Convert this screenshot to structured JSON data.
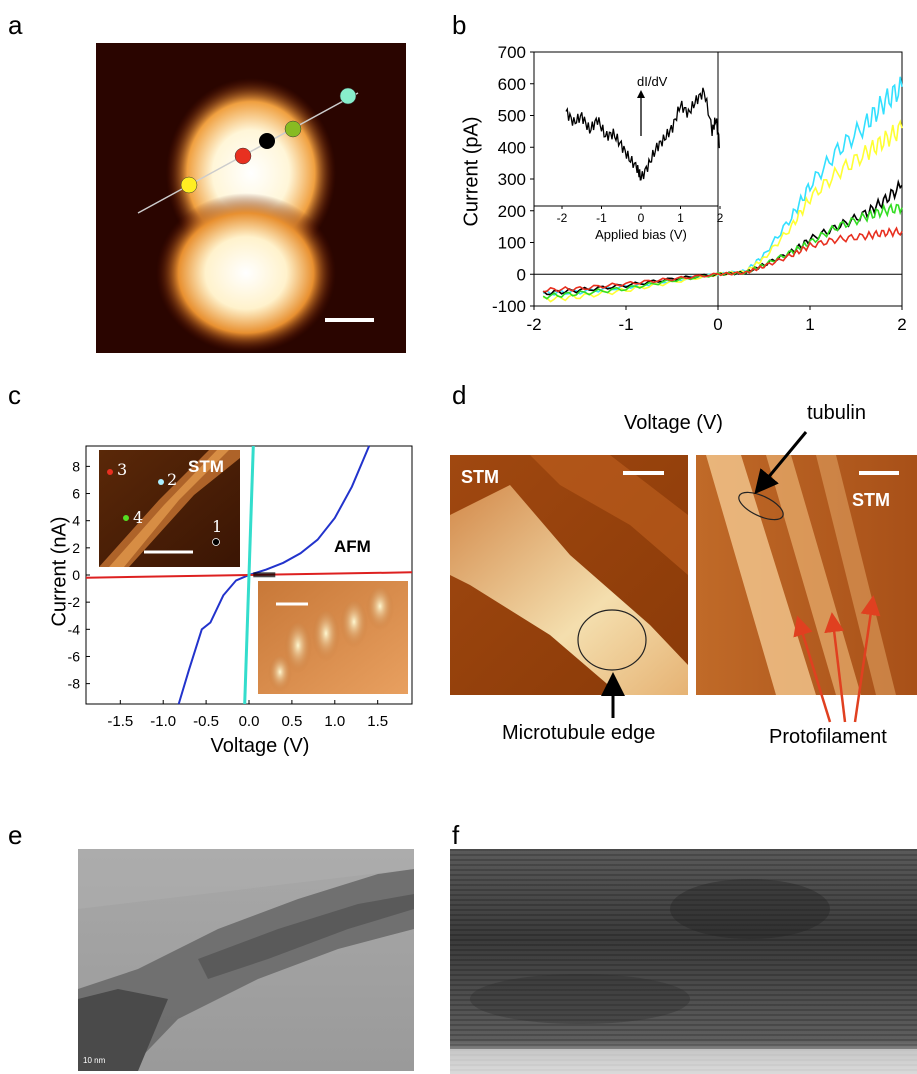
{
  "panels": {
    "a": {
      "letter": "a"
    },
    "b": {
      "letter": "b",
      "ylabel": "Current (pA)",
      "inset_label": "dI/dV",
      "inset_xlabel": "Applied bias (V)"
    },
    "c": {
      "letter": "c",
      "ylabel": "Current (nA)",
      "xlabel": "Voltage (V)",
      "stm_label": "STM",
      "afm_label": "AFM",
      "point_labels": [
        "3",
        "2",
        "4",
        "1"
      ]
    },
    "d": {
      "letter": "d",
      "top_label": "Voltage (V)",
      "tubulin_label": "tubulin",
      "stm_left": "STM",
      "stm_right": "STM",
      "edge_label": "Microtubule edge",
      "protofilament_label": "Protofilament"
    },
    "e": {
      "letter": "e",
      "scale_text": "10 nm"
    },
    "f": {
      "letter": "f"
    }
  },
  "colors": {
    "cyan": "#33e0ff",
    "yellow": "#ffff33",
    "black": "#000000",
    "green": "#33dd22",
    "red": "#e83020",
    "blue": "#2233cc",
    "redline": "#dd2020",
    "teal": "#33ddcc"
  },
  "chart_data": [
    {
      "type": "line",
      "panel": "b",
      "xlim": [
        -2,
        2
      ],
      "ylim": [
        -100,
        700
      ],
      "xticks": [
        -2,
        -1,
        0,
        1,
        2
      ],
      "yticks": [
        -100,
        0,
        100,
        200,
        300,
        400,
        500,
        600,
        700
      ],
      "ylabel": "Current (pA)",
      "series": [
        {
          "color": "#33e0ff",
          "x": [
            -1.9,
            -1.5,
            -1,
            -0.5,
            0,
            0.3,
            0.5,
            0.8,
            1,
            1.3,
            1.6,
            1.8,
            2.0
          ],
          "y": [
            -60,
            -55,
            -40,
            -20,
            0,
            10,
            60,
            180,
            280,
            390,
            470,
            540,
            590
          ]
        },
        {
          "color": "#ffff33",
          "x": [
            -1.9,
            -1.5,
            -1,
            -0.5,
            0,
            0.3,
            0.5,
            0.8,
            1,
            1.3,
            1.6,
            1.8,
            2.0
          ],
          "y": [
            -80,
            -70,
            -50,
            -25,
            0,
            8,
            50,
            150,
            240,
            320,
            380,
            420,
            460
          ]
        },
        {
          "color": "#000000",
          "x": [
            -1.9,
            -1.5,
            -1,
            -0.5,
            0,
            0.3,
            0.5,
            0.8,
            1,
            1.3,
            1.6,
            1.8,
            2.0
          ],
          "y": [
            -60,
            -50,
            -35,
            -15,
            0,
            5,
            30,
            70,
            110,
            150,
            190,
            230,
            280
          ]
        },
        {
          "color": "#33dd22",
          "x": [
            -1.9,
            -1.5,
            -1,
            -0.5,
            0,
            0.3,
            0.5,
            0.8,
            1,
            1.3,
            1.6,
            1.8,
            2.0
          ],
          "y": [
            -70,
            -60,
            -45,
            -20,
            0,
            5,
            30,
            70,
            100,
            150,
            180,
            200,
            210
          ]
        },
        {
          "color": "#e83020",
          "x": [
            -1.9,
            -1.5,
            -1,
            -0.5,
            0,
            0.3,
            0.5,
            0.8,
            1,
            1.3,
            1.6,
            1.8,
            2.0
          ],
          "y": [
            -50,
            -45,
            -30,
            -15,
            0,
            5,
            25,
            60,
            90,
            110,
            120,
            130,
            135
          ]
        }
      ],
      "inset": {
        "type": "line",
        "xlim": [
          -2,
          2
        ],
        "xticks": [
          -2,
          -1,
          0,
          1,
          2
        ],
        "xlabel": "Applied bias (V)",
        "label": "dI/dV",
        "x": [
          -1.9,
          -1.7,
          -1.5,
          -1.3,
          -1.1,
          -0.9,
          -0.7,
          -0.5,
          -0.3,
          -0.1,
          0,
          0.2,
          0.4,
          0.6,
          0.8,
          1.0,
          1.2,
          1.4,
          1.6,
          1.8,
          1.9,
          2.0
        ],
        "y": [
          0.72,
          0.62,
          0.68,
          0.55,
          0.65,
          0.5,
          0.52,
          0.42,
          0.3,
          0.22,
          0.12,
          0.25,
          0.4,
          0.48,
          0.58,
          0.78,
          0.7,
          0.82,
          0.9,
          0.55,
          0.65,
          0.4
        ]
      }
    },
    {
      "type": "line",
      "panel": "c",
      "xlim": [
        -1.9,
        1.9
      ],
      "ylim": [
        -9.5,
        9.5
      ],
      "xticks": [
        -1.5,
        -1.0,
        -0.5,
        0.0,
        0.5,
        1.0,
        1.5
      ],
      "yticks": [
        -8,
        -6,
        -4,
        -2,
        0,
        2,
        4,
        6,
        8
      ],
      "xlabel": "Voltage (V)",
      "ylabel": "Current (nA)",
      "series": [
        {
          "color": "#2233cc",
          "x": [
            -0.82,
            -0.7,
            -0.55,
            -0.45,
            -0.3,
            -0.15,
            0,
            0.2,
            0.4,
            0.6,
            0.8,
            1.0,
            1.2,
            1.4
          ],
          "y": [
            -9.5,
            -7,
            -4,
            -3.5,
            -1.5,
            -0.4,
            0,
            0.4,
            0.9,
            1.6,
            2.6,
            4.2,
            6.5,
            9.5
          ]
        },
        {
          "color": "#dd2020",
          "x": [
            -1.9,
            0,
            1.9
          ],
          "y": [
            -0.2,
            0,
            0.2
          ]
        },
        {
          "color": "#33ddcc",
          "x": [
            -0.05,
            0.05
          ],
          "y": [
            -9.5,
            9.5
          ]
        }
      ]
    }
  ]
}
